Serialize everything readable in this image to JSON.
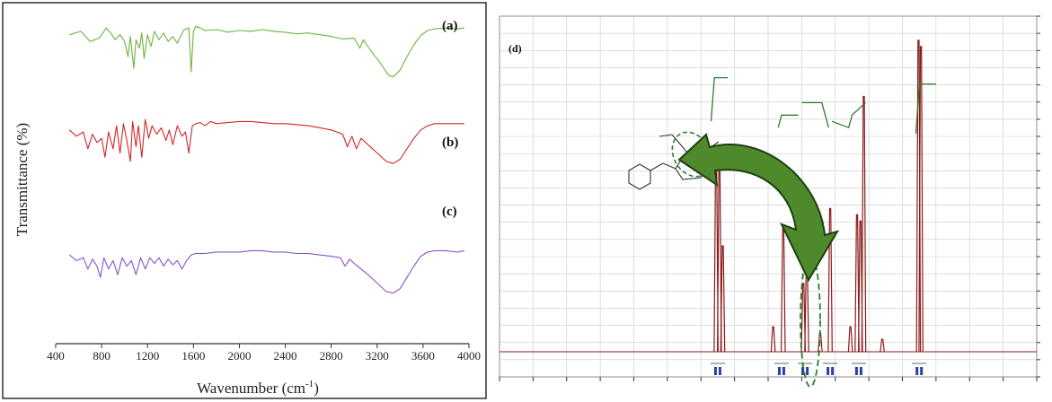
{
  "chart_data": [
    {
      "type": "line",
      "panel": "left",
      "xlabel": "Wavenumber (cm",
      "xlabel_sup": "-1",
      "xlabel_tail": ")",
      "ylabel": "Transmittance (%)",
      "xlim": [
        400,
        4000
      ],
      "x_ticks": [
        "400",
        "800",
        "1200",
        "1600",
        "2000",
        "2400",
        "2800",
        "3200",
        "3600",
        "4000"
      ],
      "grid": false,
      "legend": "none",
      "series": [
        {
          "label": "(a)",
          "color": "#6db33f",
          "points": [
            [
              520,
              78
            ],
            [
              620,
              82
            ],
            [
              700,
              70
            ],
            [
              780,
              74
            ],
            [
              840,
              86
            ],
            [
              880,
              80
            ],
            [
              920,
              72
            ],
            [
              960,
              78
            ],
            [
              1000,
              70
            ],
            [
              1030,
              52
            ],
            [
              1050,
              76
            ],
            [
              1080,
              38
            ],
            [
              1100,
              72
            ],
            [
              1130,
              62
            ],
            [
              1150,
              80
            ],
            [
              1170,
              50
            ],
            [
              1200,
              78
            ],
            [
              1230,
              64
            ],
            [
              1260,
              82
            ],
            [
              1300,
              72
            ],
            [
              1340,
              80
            ],
            [
              1380,
              70
            ],
            [
              1420,
              76
            ],
            [
              1460,
              68
            ],
            [
              1480,
              74
            ],
            [
              1520,
              84
            ],
            [
              1560,
              86
            ],
            [
              1580,
              34
            ],
            [
              1600,
              82
            ],
            [
              1620,
              88
            ],
            [
              1660,
              86
            ],
            [
              1700,
              83
            ],
            [
              1800,
              84
            ],
            [
              1900,
              81
            ],
            [
              2000,
              83
            ],
            [
              2100,
              82
            ],
            [
              2200,
              84
            ],
            [
              2300,
              82
            ],
            [
              2400,
              81
            ],
            [
              2500,
              79
            ],
            [
              2600,
              80
            ],
            [
              2700,
              78
            ],
            [
              2800,
              76
            ],
            [
              2900,
              73
            ],
            [
              3000,
              74
            ],
            [
              3050,
              62
            ],
            [
              3080,
              72
            ],
            [
              3150,
              58
            ],
            [
              3220,
              46
            ],
            [
              3300,
              30
            ],
            [
              3340,
              28
            ],
            [
              3400,
              36
            ],
            [
              3460,
              52
            ],
            [
              3520,
              66
            ],
            [
              3580,
              77
            ],
            [
              3640,
              83
            ],
            [
              3700,
              85
            ],
            [
              3800,
              86
            ],
            [
              3900,
              85
            ],
            [
              3960,
              86
            ]
          ]
        },
        {
          "label": "(b)",
          "color": "#d42626",
          "points": [
            [
              520,
              66
            ],
            [
              580,
              60
            ],
            [
              640,
              64
            ],
            [
              680,
              48
            ],
            [
              720,
              62
            ],
            [
              760,
              54
            ],
            [
              800,
              58
            ],
            [
              830,
              40
            ],
            [
              860,
              64
            ],
            [
              900,
              48
            ],
            [
              930,
              70
            ],
            [
              960,
              44
            ],
            [
              990,
              72
            ],
            [
              1020,
              56
            ],
            [
              1050,
              36
            ],
            [
              1070,
              74
            ],
            [
              1100,
              50
            ],
            [
              1120,
              70
            ],
            [
              1150,
              40
            ],
            [
              1180,
              76
            ],
            [
              1210,
              58
            ],
            [
              1240,
              70
            ],
            [
              1280,
              62
            ],
            [
              1320,
              68
            ],
            [
              1360,
              56
            ],
            [
              1390,
              66
            ],
            [
              1420,
              52
            ],
            [
              1460,
              70
            ],
            [
              1500,
              60
            ],
            [
              1530,
              64
            ],
            [
              1560,
              44
            ],
            [
              1590,
              70
            ],
            [
              1620,
              72
            ],
            [
              1660,
              73
            ],
            [
              1700,
              70
            ],
            [
              1750,
              74
            ],
            [
              1800,
              72
            ],
            [
              1900,
              73
            ],
            [
              2000,
              74
            ],
            [
              2100,
              74
            ],
            [
              2200,
              73
            ],
            [
              2300,
              72
            ],
            [
              2400,
              72
            ],
            [
              2500,
              71
            ],
            [
              2600,
              70
            ],
            [
              2700,
              68
            ],
            [
              2800,
              66
            ],
            [
              2900,
              62
            ],
            [
              2940,
              50
            ],
            [
              2980,
              60
            ],
            [
              3020,
              48
            ],
            [
              3060,
              58
            ],
            [
              3120,
              52
            ],
            [
              3200,
              44
            ],
            [
              3280,
              36
            ],
            [
              3340,
              34
            ],
            [
              3400,
              38
            ],
            [
              3460,
              48
            ],
            [
              3520,
              58
            ],
            [
              3580,
              66
            ],
            [
              3640,
              70
            ],
            [
              3700,
              72
            ],
            [
              3800,
              72
            ],
            [
              3900,
              72
            ],
            [
              3960,
              72
            ]
          ]
        },
        {
          "label": "(c)",
          "color": "#8a52c7",
          "points": [
            [
              520,
              56
            ],
            [
              580,
              52
            ],
            [
              640,
              54
            ],
            [
              680,
              46
            ],
            [
              720,
              53
            ],
            [
              760,
              48
            ],
            [
              790,
              40
            ],
            [
              820,
              54
            ],
            [
              860,
              46
            ],
            [
              900,
              52
            ],
            [
              940,
              42
            ],
            [
              980,
              54
            ],
            [
              1020,
              48
            ],
            [
              1060,
              52
            ],
            [
              1100,
              42
            ],
            [
              1140,
              54
            ],
            [
              1180,
              46
            ],
            [
              1220,
              54
            ],
            [
              1260,
              50
            ],
            [
              1300,
              54
            ],
            [
              1340,
              48
            ],
            [
              1380,
              53
            ],
            [
              1420,
              49
            ],
            [
              1460,
              52
            ],
            [
              1500,
              46
            ],
            [
              1540,
              52
            ],
            [
              1580,
              56
            ],
            [
              1620,
              57
            ],
            [
              1700,
              57
            ],
            [
              1800,
              58
            ],
            [
              1900,
              58
            ],
            [
              2000,
              58
            ],
            [
              2100,
              59
            ],
            [
              2200,
              59
            ],
            [
              2300,
              58
            ],
            [
              2400,
              58
            ],
            [
              2500,
              57
            ],
            [
              2600,
              57
            ],
            [
              2700,
              56
            ],
            [
              2800,
              55
            ],
            [
              2880,
              54
            ],
            [
              2920,
              48
            ],
            [
              2960,
              53
            ],
            [
              3000,
              50
            ],
            [
              3060,
              46
            ],
            [
              3120,
              42
            ],
            [
              3200,
              36
            ],
            [
              3280,
              30
            ],
            [
              3340,
              29
            ],
            [
              3400,
              32
            ],
            [
              3460,
              40
            ],
            [
              3520,
              48
            ],
            [
              3580,
              55
            ],
            [
              3640,
              58
            ],
            [
              3700,
              59
            ],
            [
              3800,
              59
            ],
            [
              3900,
              58
            ],
            [
              3960,
              59
            ]
          ]
        }
      ]
    },
    {
      "type": "line",
      "panel": "right",
      "panel_label": "(d)",
      "xlim": [
        14,
        -2
      ],
      "axis_reversed": true,
      "grid": true,
      "series": [
        {
          "color": "#8b1a1a",
          "peaks": [
            [
              7.55,
              0.62
            ],
            [
              7.45,
              0.58
            ],
            [
              7.35,
              0.34
            ],
            [
              5.85,
              0.08
            ],
            [
              5.55,
              0.4
            ],
            [
              4.95,
              0.22
            ],
            [
              4.85,
              0.28
            ],
            [
              4.45,
              0.06
            ],
            [
              4.15,
              0.46
            ],
            [
              3.55,
              0.08
            ],
            [
              3.35,
              0.44
            ],
            [
              3.25,
              0.42
            ],
            [
              3.15,
              0.82
            ],
            [
              2.6,
              0.04
            ],
            [
              1.52,
              1.0
            ],
            [
              1.45,
              0.98
            ]
          ]
        },
        {
          "color": "#2e7d32",
          "steps": [
            [
              7.7,
              0.74
            ],
            [
              7.6,
              0.88
            ],
            [
              7.2,
              0.88
            ],
            [
              5.7,
              0.72
            ],
            [
              5.6,
              0.76
            ],
            [
              5.1,
              0.76
            ],
            [
              5.0,
              0.8
            ],
            [
              4.4,
              0.8
            ],
            [
              4.2,
              0.72
            ],
            [
              4.1,
              0.74
            ],
            [
              3.6,
              0.72
            ],
            [
              3.5,
              0.76
            ],
            [
              3.1,
              0.8
            ],
            [
              1.6,
              0.7
            ],
            [
              1.5,
              0.86
            ],
            [
              1.0,
              0.86
            ]
          ]
        }
      ]
    }
  ]
}
